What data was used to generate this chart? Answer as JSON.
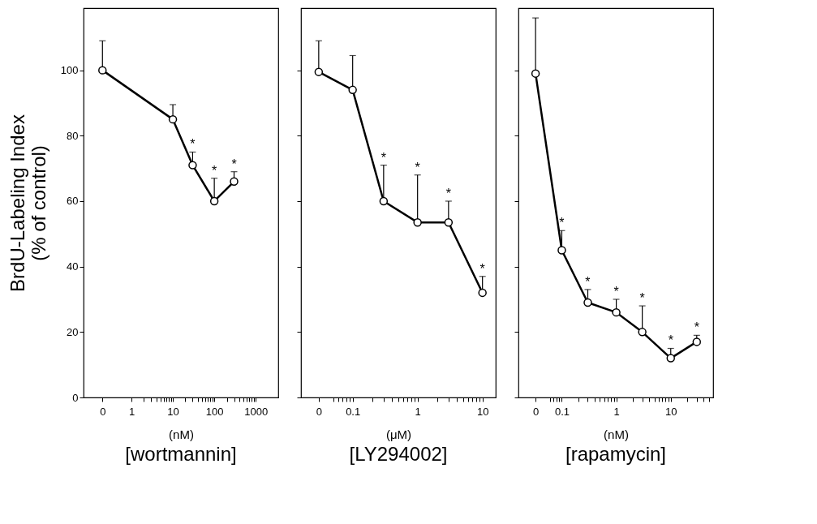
{
  "chart_data": [
    {
      "type": "line",
      "title": "[wortmannin]",
      "xlabel": "(nM)",
      "ylabel": "BrdU-Labeling Index\n(% of control)",
      "log": "x",
      "xlim": [
        0.07,
        3500
      ],
      "ylim": [
        0,
        119
      ],
      "yticks": [
        0,
        20,
        40,
        60,
        80,
        100
      ],
      "xticks": [
        {
          "value": 0.2,
          "label": "0"
        },
        1,
        {
          "value": 2,
          "label": null
        },
        {
          "value": 3,
          "label": null
        },
        {
          "value": 4,
          "label": null
        },
        {
          "value": 5,
          "label": null
        },
        {
          "value": 6,
          "label": null
        },
        {
          "value": 7,
          "label": null
        },
        {
          "value": 8,
          "label": null
        },
        {
          "value": 9,
          "label": null
        },
        10,
        {
          "value": 20,
          "label": null
        },
        {
          "value": 30,
          "label": null
        },
        {
          "value": 40,
          "label": null
        },
        {
          "value": 50,
          "label": null
        },
        {
          "value": 60,
          "label": null
        },
        {
          "value": 70,
          "label": null
        },
        {
          "value": 80,
          "label": null
        },
        {
          "value": 90,
          "label": null
        },
        100,
        {
          "value": 200,
          "label": null
        },
        {
          "value": 300,
          "label": null
        },
        {
          "value": 400,
          "label": null
        },
        {
          "value": 500,
          "label": null
        },
        {
          "value": 600,
          "label": null
        },
        {
          "value": 700,
          "label": null
        },
        {
          "value": 800,
          "label": null
        },
        {
          "value": 900,
          "label": null
        },
        1000
      ],
      "grid": false,
      "marker": "circle",
      "line_style": "solid",
      "x": [
        0.2,
        10,
        30,
        100,
        300
      ],
      "series": [
        {
          "color": "#000000",
          "values": [
            100,
            85,
            71,
            60,
            66
          ],
          "errors": [
            [
              100,
              109
            ],
            [
              85,
              89.5
            ],
            [
              71,
              75
            ],
            [
              60,
              67
            ],
            [
              66,
              69
            ]
          ]
        }
      ],
      "annotations": [
        {
          "text": "*",
          "x": 30,
          "y": 75
        },
        {
          "text": "*",
          "x": 100,
          "y": 67
        },
        {
          "text": "*",
          "x": 300,
          "y": 69
        }
      ]
    },
    {
      "type": "line",
      "title": "[LY294002]",
      "xlabel": "(μM)",
      "log": "x",
      "tick_labels": "x",
      "xlim": [
        0.016,
        16
      ],
      "ylim": [
        0,
        119
      ],
      "yticks": [
        0,
        20,
        40,
        60,
        80,
        100
      ],
      "xticks": [
        {
          "value": 0.03,
          "label": "0"
        },
        {
          "value": 0.05,
          "label": null
        },
        {
          "value": 0.06,
          "label": null
        },
        {
          "value": 0.07,
          "label": null
        },
        {
          "value": 0.08,
          "label": null
        },
        {
          "value": 0.09,
          "label": null
        },
        0.1,
        {
          "value": 0.2,
          "label": null
        },
        {
          "value": 0.3,
          "label": null
        },
        {
          "value": 0.4,
          "label": null
        },
        {
          "value": 0.5,
          "label": null
        },
        {
          "value": 0.6,
          "label": null
        },
        {
          "value": 0.7,
          "label": null
        },
        {
          "value": 0.8,
          "label": null
        },
        {
          "value": 0.9,
          "label": null
        },
        1,
        {
          "value": 2,
          "label": null
        },
        {
          "value": 3,
          "label": null
        },
        {
          "value": 4,
          "label": null
        },
        {
          "value": 5,
          "label": null
        },
        {
          "value": 6,
          "label": null
        },
        {
          "value": 7,
          "label": null
        },
        {
          "value": 8,
          "label": null
        },
        {
          "value": 9,
          "label": null
        },
        10
      ],
      "grid": false,
      "marker": "circle",
      "line_style": "solid",
      "x": [
        0.03,
        0.1,
        0.3,
        1,
        3,
        10
      ],
      "series": [
        {
          "color": "#000000",
          "values": [
            99.5,
            94,
            60,
            53.5,
            53.5,
            32
          ],
          "errors": [
            [
              99.5,
              109
            ],
            [
              94,
              104.5
            ],
            [
              60,
              71
            ],
            [
              53.5,
              68
            ],
            [
              53.5,
              60
            ],
            [
              32,
              37
            ]
          ]
        }
      ],
      "annotations": [
        {
          "text": "*",
          "x": 0.3,
          "y": 71
        },
        {
          "text": "*",
          "x": 1,
          "y": 68
        },
        {
          "text": "*",
          "x": 3,
          "y": 60
        },
        {
          "text": "*",
          "x": 10,
          "y": 37
        }
      ]
    },
    {
      "type": "line",
      "title": "[rapamycin]",
      "xlabel": "(nM)",
      "log": "x",
      "tick_labels": "x",
      "xlim": [
        0.016,
        60
      ],
      "ylim": [
        0,
        119
      ],
      "yticks": [
        0,
        20,
        40,
        60,
        80,
        100
      ],
      "xticks": [
        {
          "value": 0.033,
          "label": "0"
        },
        {
          "value": 0.06,
          "label": null
        },
        {
          "value": 0.07,
          "label": null
        },
        {
          "value": 0.08,
          "label": null
        },
        {
          "value": 0.09,
          "label": null
        },
        0.1,
        {
          "value": 0.2,
          "label": null
        },
        {
          "value": 0.3,
          "label": null
        },
        {
          "value": 0.4,
          "label": null
        },
        {
          "value": 0.5,
          "label": null
        },
        {
          "value": 0.6,
          "label": null
        },
        {
          "value": 0.7,
          "label": null
        },
        {
          "value": 0.8,
          "label": null
        },
        {
          "value": 0.9,
          "label": null
        },
        1,
        {
          "value": 2,
          "label": null
        },
        {
          "value": 3,
          "label": null
        },
        {
          "value": 4,
          "label": null
        },
        {
          "value": 5,
          "label": null
        },
        {
          "value": 6,
          "label": null
        },
        {
          "value": 7,
          "label": null
        },
        {
          "value": 8,
          "label": null
        },
        {
          "value": 9,
          "label": null
        },
        10,
        {
          "value": 20,
          "label": null
        },
        {
          "value": 30,
          "label": null
        },
        {
          "value": 40,
          "label": null
        },
        {
          "value": 50,
          "label": null
        }
      ],
      "grid": false,
      "marker": "circle",
      "line_style": "solid",
      "x": [
        0.033,
        0.1,
        0.3,
        1,
        3,
        10,
        30
      ],
      "series": [
        {
          "color": "#000000",
          "values": [
            99,
            45,
            29,
            26,
            20,
            12,
            17
          ],
          "errors": [
            [
              99,
              116
            ],
            [
              45,
              51
            ],
            [
              29,
              33
            ],
            [
              26,
              30
            ],
            [
              20,
              28
            ],
            [
              12,
              15
            ],
            [
              17,
              19
            ]
          ]
        }
      ],
      "annotations": [
        {
          "text": "*",
          "x": 0.1,
          "y": 51
        },
        {
          "text": "*",
          "x": 0.3,
          "y": 33
        },
        {
          "text": "*",
          "x": 1,
          "y": 30
        },
        {
          "text": "*",
          "x": 3,
          "y": 28
        },
        {
          "text": "*",
          "x": 10,
          "y": 15
        },
        {
          "text": "*",
          "x": 30,
          "y": 19
        }
      ]
    }
  ]
}
